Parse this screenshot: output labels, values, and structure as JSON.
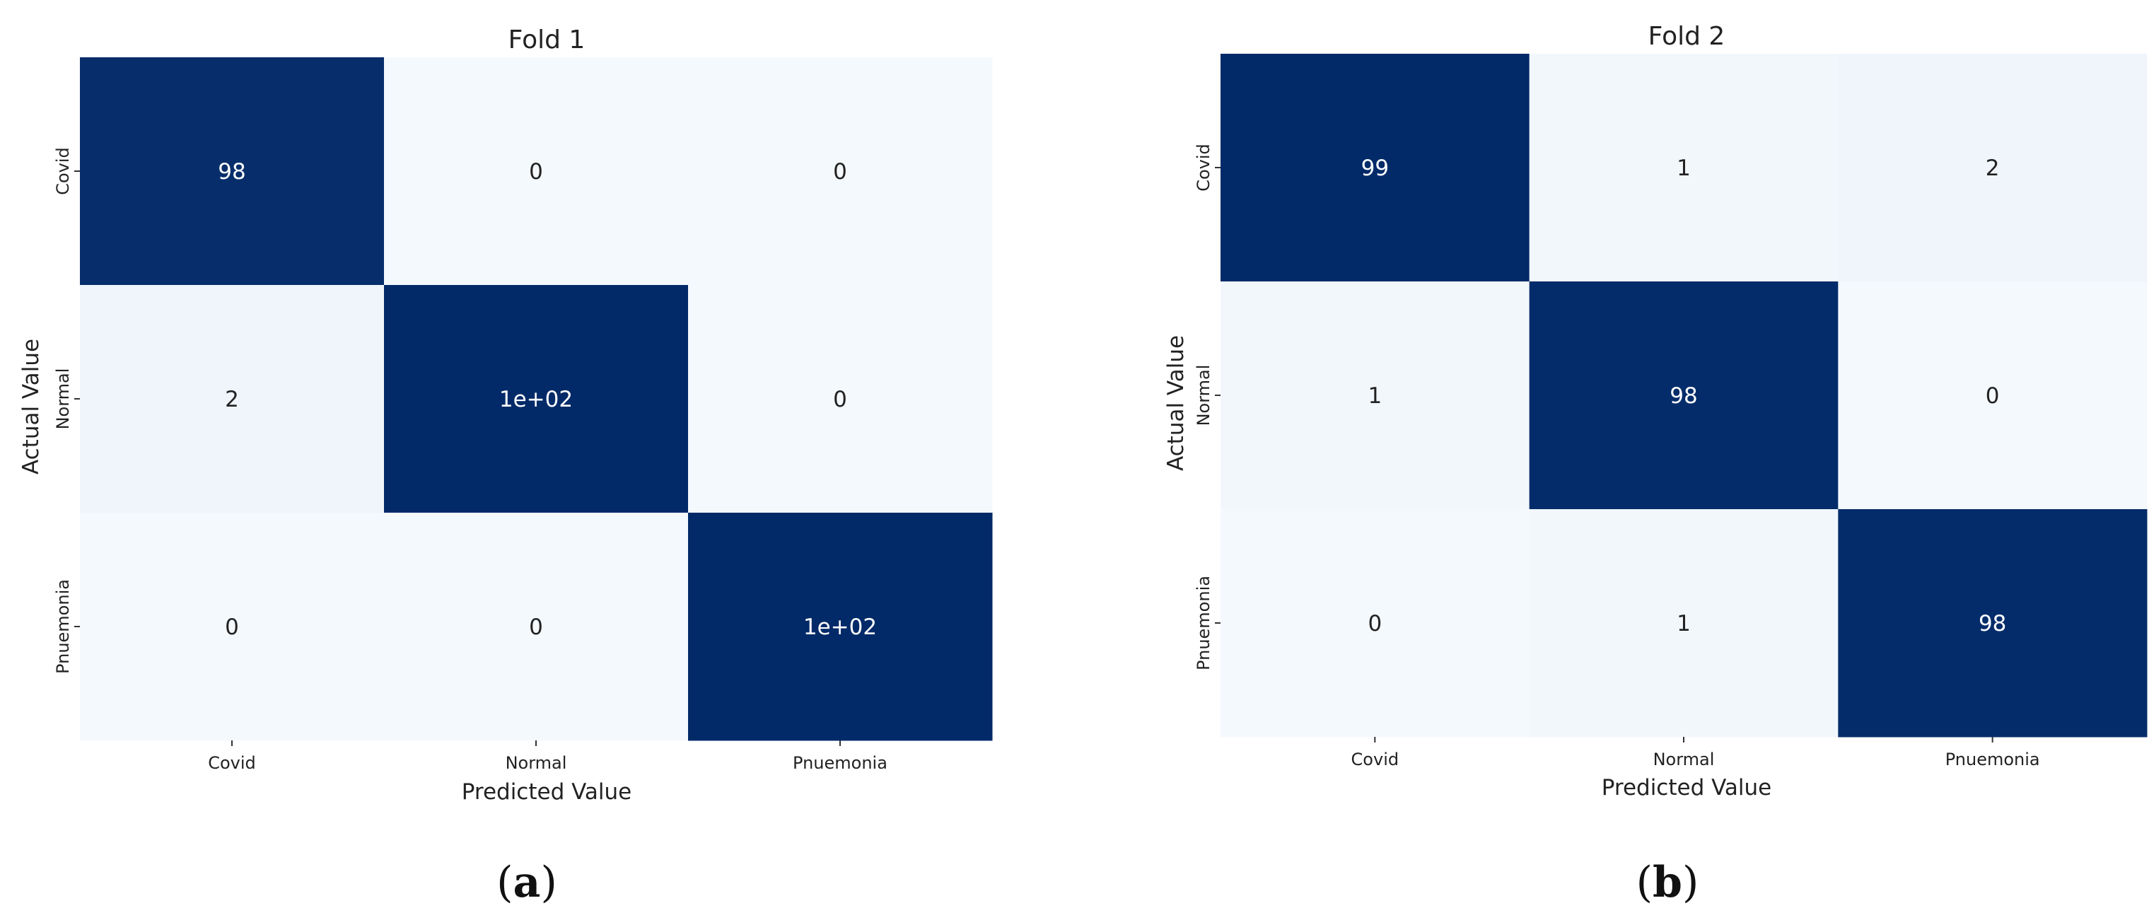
{
  "figure": {
    "panels": [
      {
        "label_open": "(",
        "label_letter": "a",
        "label_close": ")"
      },
      {
        "label_open": "(",
        "label_letter": "b",
        "label_close": ")"
      }
    ]
  },
  "colors": {
    "high": "#022a68",
    "low": "#f4f9fe",
    "text_on_dark": "#ffffff",
    "text_on_light": "#222222"
  },
  "chart_data": [
    {
      "type": "heatmap",
      "title": "Fold 1",
      "xlabel": "Predicted Value",
      "ylabel": "Actual Value",
      "x_categories": [
        "Covid",
        "Normal",
        "Pnuemonia"
      ],
      "y_categories": [
        "Covid",
        "Normal",
        "Pnuemonia"
      ],
      "values": [
        [
          98,
          0,
          0
        ],
        [
          2,
          100,
          0
        ],
        [
          0,
          0,
          100
        ]
      ],
      "annotations": [
        [
          "98",
          "0",
          "0"
        ],
        [
          "2",
          "1e+02",
          "0"
        ],
        [
          "0",
          "0",
          "1e+02"
        ]
      ],
      "colorbar": false
    },
    {
      "type": "heatmap",
      "title": "Fold 2",
      "xlabel": "Predicted Value",
      "ylabel": "Actual Value",
      "x_categories": [
        "Covid",
        "Normal",
        "Pnuemonia"
      ],
      "y_categories": [
        "Covid",
        "Normal",
        "Pnuemonia"
      ],
      "values": [
        [
          99,
          1,
          2
        ],
        [
          1,
          98,
          0
        ],
        [
          0,
          1,
          98
        ]
      ],
      "annotations": [
        [
          "99",
          "1",
          "2"
        ],
        [
          "1",
          "98",
          "0"
        ],
        [
          "0",
          "1",
          "98"
        ]
      ],
      "colorbar": false
    }
  ]
}
